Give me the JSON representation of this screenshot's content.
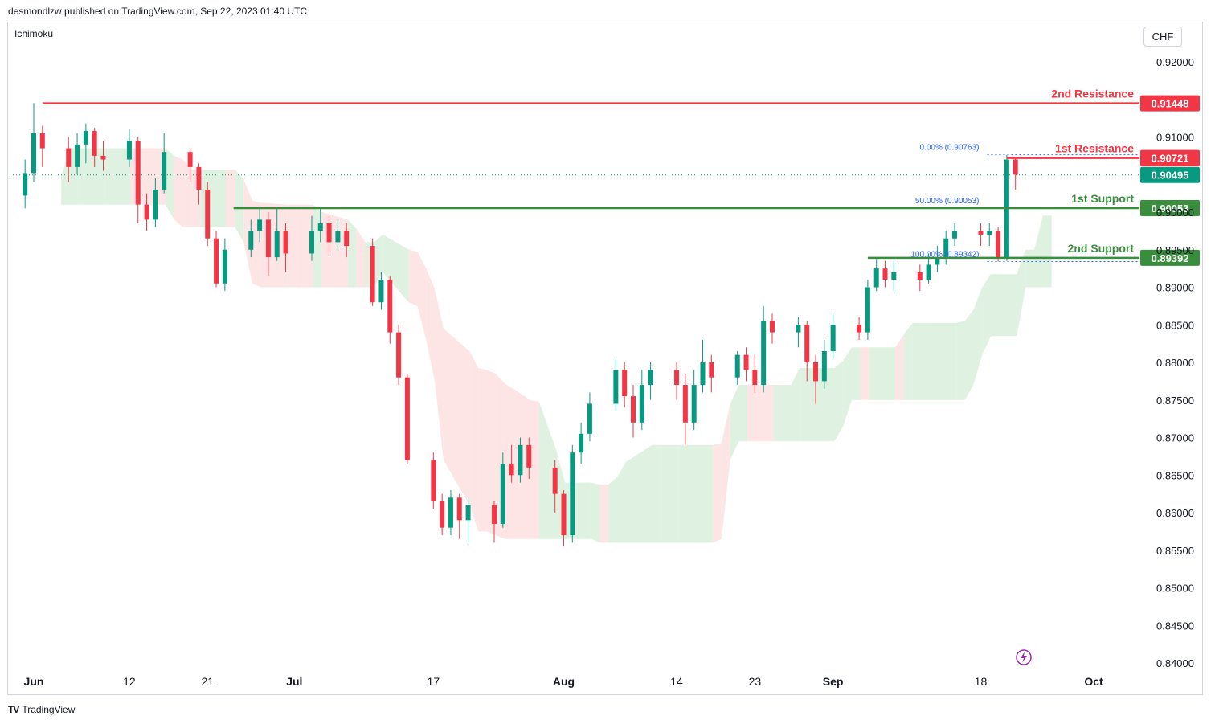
{
  "header": {
    "publisher_text": "desmondlzw published on TradingView.com, Sep 22, 2023 01:40 UTC"
  },
  "indicator": {
    "name": "Ichimoku"
  },
  "currency": {
    "label": "CHF"
  },
  "footer": {
    "brand": "TradingView"
  },
  "chart_data": {
    "type": "candlestick",
    "symbol_currency": "CHF",
    "y_range": [
      0.8395,
      0.9235
    ],
    "y_ticks": [
      "0.92000",
      "0.91000",
      "0.90000",
      "0.89500",
      "0.89000",
      "0.88500",
      "0.88000",
      "0.87500",
      "0.87000",
      "0.86500",
      "0.86000",
      "0.85500",
      "0.85000",
      "0.84500",
      "0.84000"
    ],
    "y_tick_values": [
      0.92,
      0.91,
      0.9,
      0.895,
      0.89,
      0.885,
      0.88,
      0.875,
      0.87,
      0.865,
      0.86,
      0.855,
      0.85,
      0.845,
      0.84
    ],
    "x_ticks": [
      "Jun",
      "12",
      "21",
      "Jul",
      "17",
      "Aug",
      "14",
      "23",
      "Sep",
      "18",
      "Oct"
    ],
    "x_tick_dates": [
      "2023-06-01",
      "2023-06-12",
      "2023-06-21",
      "2023-07-01",
      "2023-07-17",
      "2023-08-01",
      "2023-08-14",
      "2023-08-23",
      "2023-09-01",
      "2023-09-18",
      "2023-10-01"
    ],
    "bold_x_ticks": [
      "Jun",
      "Jul",
      "Aug",
      "Sep",
      "Oct"
    ],
    "colors": {
      "up": "#089981",
      "down": "#f23645",
      "resistance": "#f23645",
      "support": "#388e3c",
      "cloud_bull": "#d9eedb",
      "cloud_bear": "#fde0e0",
      "fib": "#2962ff"
    },
    "levels": [
      {
        "label": "2nd Resistance",
        "price": "0.91448",
        "value": 0.91448,
        "kind": "resistance",
        "start_date": "2023-06-02"
      },
      {
        "label": "1st Resistance",
        "price": "0.90721",
        "value": 0.90721,
        "kind": "resistance",
        "start_date": "2023-09-21"
      },
      {
        "label": "1st Support",
        "price": "0.90053",
        "value": 0.90053,
        "kind": "support",
        "start_date": "2023-06-24"
      },
      {
        "label": "2nd Support",
        "price": "0.89392",
        "value": 0.89392,
        "kind": "support",
        "start_date": "2023-09-05"
      }
    ],
    "current_price": {
      "price": "0.90495",
      "value": 0.90495
    },
    "fib_levels": [
      {
        "label": "0.00% (0.90763)",
        "value": 0.90763
      },
      {
        "label": "50.00% (0.90053)",
        "value": 0.90053
      },
      {
        "label": "100.00% (0.89342)",
        "value": 0.89342
      }
    ],
    "candles": [
      {
        "date": "2023-05-31",
        "o": 0.9022,
        "c": 0.9052,
        "h": 0.907,
        "l": 0.9005
      },
      {
        "date": "2023-06-01",
        "o": 0.9052,
        "c": 0.9105,
        "h": 0.9145,
        "l": 0.904
      },
      {
        "date": "2023-06-02",
        "o": 0.9105,
        "c": 0.9085,
        "h": 0.9115,
        "l": 0.906
      },
      {
        "date": "2023-06-05",
        "o": 0.9085,
        "c": 0.906,
        "h": 0.91,
        "l": 0.904
      },
      {
        "date": "2023-06-06",
        "o": 0.906,
        "c": 0.909,
        "h": 0.9105,
        "l": 0.905
      },
      {
        "date": "2023-06-07",
        "o": 0.909,
        "c": 0.9108,
        "h": 0.9118,
        "l": 0.9065
      },
      {
        "date": "2023-06-08",
        "o": 0.9108,
        "c": 0.9075,
        "h": 0.9112,
        "l": 0.906
      },
      {
        "date": "2023-06-09",
        "o": 0.9075,
        "c": 0.907,
        "h": 0.9095,
        "l": 0.9055
      },
      {
        "date": "2023-06-12",
        "o": 0.907,
        "c": 0.9095,
        "h": 0.911,
        "l": 0.906
      },
      {
        "date": "2023-06-13",
        "o": 0.9095,
        "c": 0.901,
        "h": 0.91,
        "l": 0.8985
      },
      {
        "date": "2023-06-14",
        "o": 0.901,
        "c": 0.899,
        "h": 0.9025,
        "l": 0.8975
      },
      {
        "date": "2023-06-15",
        "o": 0.899,
        "c": 0.903,
        "h": 0.9045,
        "l": 0.898
      },
      {
        "date": "2023-06-16",
        "o": 0.903,
        "c": 0.908,
        "h": 0.9105,
        "l": 0.9025
      },
      {
        "date": "2023-06-19",
        "o": 0.908,
        "c": 0.906,
        "h": 0.9085,
        "l": 0.904
      },
      {
        "date": "2023-06-20",
        "o": 0.906,
        "c": 0.903,
        "h": 0.9065,
        "l": 0.901
      },
      {
        "date": "2023-06-21",
        "o": 0.903,
        "c": 0.8965,
        "h": 0.904,
        "l": 0.8955
      },
      {
        "date": "2023-06-22",
        "o": 0.8965,
        "c": 0.8905,
        "h": 0.8975,
        "l": 0.89
      },
      {
        "date": "2023-06-23",
        "o": 0.8905,
        "c": 0.895,
        "h": 0.8965,
        "l": 0.8895
      },
      {
        "date": "2023-06-26",
        "o": 0.895,
        "c": 0.8975,
        "h": 0.899,
        "l": 0.894
      },
      {
        "date": "2023-06-27",
        "o": 0.8975,
        "c": 0.899,
        "h": 0.9005,
        "l": 0.896
      },
      {
        "date": "2023-06-28",
        "o": 0.899,
        "c": 0.894,
        "h": 0.9,
        "l": 0.8915
      },
      {
        "date": "2023-06-29",
        "o": 0.894,
        "c": 0.8975,
        "h": 0.9005,
        "l": 0.8935
      },
      {
        "date": "2023-06-30",
        "o": 0.8975,
        "c": 0.8945,
        "h": 0.8985,
        "l": 0.892
      },
      {
        "date": "2023-07-03",
        "o": 0.8945,
        "c": 0.8975,
        "h": 0.8995,
        "l": 0.8935
      },
      {
        "date": "2023-07-04",
        "o": 0.8975,
        "c": 0.8985,
        "h": 0.9005,
        "l": 0.896
      },
      {
        "date": "2023-07-05",
        "o": 0.8985,
        "c": 0.896,
        "h": 0.8995,
        "l": 0.8945
      },
      {
        "date": "2023-07-06",
        "o": 0.896,
        "c": 0.8975,
        "h": 0.899,
        "l": 0.895
      },
      {
        "date": "2023-07-07",
        "o": 0.8975,
        "c": 0.8955,
        "h": 0.8985,
        "l": 0.894
      },
      {
        "date": "2023-07-10",
        "o": 0.8955,
        "c": 0.888,
        "h": 0.8965,
        "l": 0.8875
      },
      {
        "date": "2023-07-11",
        "o": 0.888,
        "c": 0.891,
        "h": 0.892,
        "l": 0.887
      },
      {
        "date": "2023-07-12",
        "o": 0.891,
        "c": 0.884,
        "h": 0.8915,
        "l": 0.8825
      },
      {
        "date": "2023-07-13",
        "o": 0.884,
        "c": 0.878,
        "h": 0.885,
        "l": 0.877
      },
      {
        "date": "2023-07-14",
        "o": 0.878,
        "c": 0.867,
        "h": 0.8785,
        "l": 0.8665
      },
      {
        "date": "2023-07-17",
        "o": 0.867,
        "c": 0.8615,
        "h": 0.868,
        "l": 0.8605
      },
      {
        "date": "2023-07-18",
        "o": 0.8615,
        "c": 0.858,
        "h": 0.8625,
        "l": 0.857
      },
      {
        "date": "2023-07-19",
        "o": 0.858,
        "c": 0.862,
        "h": 0.863,
        "l": 0.857
      },
      {
        "date": "2023-07-20",
        "o": 0.862,
        "c": 0.859,
        "h": 0.8625,
        "l": 0.8565
      },
      {
        "date": "2023-07-21",
        "o": 0.859,
        "c": 0.861,
        "h": 0.862,
        "l": 0.856
      },
      {
        "date": "2023-07-24",
        "o": 0.861,
        "c": 0.8585,
        "h": 0.8615,
        "l": 0.856
      },
      {
        "date": "2023-07-25",
        "o": 0.8585,
        "c": 0.8665,
        "h": 0.868,
        "l": 0.858
      },
      {
        "date": "2023-07-26",
        "o": 0.8665,
        "c": 0.865,
        "h": 0.869,
        "l": 0.864
      },
      {
        "date": "2023-07-27",
        "o": 0.865,
        "c": 0.869,
        "h": 0.87,
        "l": 0.864
      },
      {
        "date": "2023-07-28",
        "o": 0.869,
        "c": 0.866,
        "h": 0.87,
        "l": 0.8645
      },
      {
        "date": "2023-07-31",
        "o": 0.866,
        "c": 0.8625,
        "h": 0.867,
        "l": 0.86
      },
      {
        "date": "2023-08-01",
        "o": 0.8625,
        "c": 0.857,
        "h": 0.863,
        "l": 0.8555
      },
      {
        "date": "2023-08-02",
        "o": 0.857,
        "c": 0.868,
        "h": 0.869,
        "l": 0.856
      },
      {
        "date": "2023-08-03",
        "o": 0.868,
        "c": 0.8705,
        "h": 0.872,
        "l": 0.8665
      },
      {
        "date": "2023-08-04",
        "o": 0.8705,
        "c": 0.8745,
        "h": 0.876,
        "l": 0.8695
      },
      {
        "date": "2023-08-07",
        "o": 0.8745,
        "c": 0.879,
        "h": 0.8805,
        "l": 0.8735
      },
      {
        "date": "2023-08-08",
        "o": 0.879,
        "c": 0.8755,
        "h": 0.88,
        "l": 0.874
      },
      {
        "date": "2023-08-09",
        "o": 0.8755,
        "c": 0.872,
        "h": 0.877,
        "l": 0.87
      },
      {
        "date": "2023-08-10",
        "o": 0.872,
        "c": 0.877,
        "h": 0.879,
        "l": 0.871
      },
      {
        "date": "2023-08-11",
        "o": 0.877,
        "c": 0.879,
        "h": 0.88,
        "l": 0.875
      },
      {
        "date": "2023-08-14",
        "o": 0.879,
        "c": 0.877,
        "h": 0.88,
        "l": 0.875
      },
      {
        "date": "2023-08-15",
        "o": 0.877,
        "c": 0.872,
        "h": 0.8785,
        "l": 0.869
      },
      {
        "date": "2023-08-16",
        "o": 0.872,
        "c": 0.877,
        "h": 0.879,
        "l": 0.871
      },
      {
        "date": "2023-08-17",
        "o": 0.877,
        "c": 0.88,
        "h": 0.883,
        "l": 0.876
      },
      {
        "date": "2023-08-18",
        "o": 0.88,
        "c": 0.878,
        "h": 0.881,
        "l": 0.876
      },
      {
        "date": "2023-08-21",
        "o": 0.878,
        "c": 0.881,
        "h": 0.8815,
        "l": 0.877
      },
      {
        "date": "2023-08-22",
        "o": 0.881,
        "c": 0.879,
        "h": 0.882,
        "l": 0.8775
      },
      {
        "date": "2023-08-23",
        "o": 0.879,
        "c": 0.877,
        "h": 0.881,
        "l": 0.876
      },
      {
        "date": "2023-08-24",
        "o": 0.877,
        "c": 0.8855,
        "h": 0.8875,
        "l": 0.876
      },
      {
        "date": "2023-08-25",
        "o": 0.8855,
        "c": 0.884,
        "h": 0.8865,
        "l": 0.8825
      },
      {
        "date": "2023-08-28",
        "o": 0.884,
        "c": 0.885,
        "h": 0.886,
        "l": 0.882
      },
      {
        "date": "2023-08-29",
        "o": 0.885,
        "c": 0.88,
        "h": 0.8855,
        "l": 0.8775
      },
      {
        "date": "2023-08-30",
        "o": 0.88,
        "c": 0.8775,
        "h": 0.881,
        "l": 0.8745
      },
      {
        "date": "2023-08-31",
        "o": 0.8775,
        "c": 0.8815,
        "h": 0.883,
        "l": 0.8765
      },
      {
        "date": "2023-09-01",
        "o": 0.8815,
        "c": 0.885,
        "h": 0.8865,
        "l": 0.8805
      },
      {
        "date": "2023-09-04",
        "o": 0.885,
        "c": 0.884,
        "h": 0.886,
        "l": 0.883
      },
      {
        "date": "2023-09-05",
        "o": 0.884,
        "c": 0.89,
        "h": 0.891,
        "l": 0.883
      },
      {
        "date": "2023-09-06",
        "o": 0.89,
        "c": 0.8925,
        "h": 0.894,
        "l": 0.8895
      },
      {
        "date": "2023-09-07",
        "o": 0.8925,
        "c": 0.891,
        "h": 0.8935,
        "l": 0.89
      },
      {
        "date": "2023-09-08",
        "o": 0.891,
        "c": 0.892,
        "h": 0.8935,
        "l": 0.8895
      },
      {
        "date": "2023-09-11",
        "o": 0.892,
        "c": 0.891,
        "h": 0.893,
        "l": 0.8895
      },
      {
        "date": "2023-09-12",
        "o": 0.891,
        "c": 0.893,
        "h": 0.8945,
        "l": 0.8905
      },
      {
        "date": "2023-09-13",
        "o": 0.893,
        "c": 0.894,
        "h": 0.8955,
        "l": 0.892
      },
      {
        "date": "2023-09-14",
        "o": 0.894,
        "c": 0.8965,
        "h": 0.8975,
        "l": 0.893
      },
      {
        "date": "2023-09-15",
        "o": 0.8965,
        "c": 0.8975,
        "h": 0.8985,
        "l": 0.8955
      },
      {
        "date": "2023-09-18",
        "o": 0.8975,
        "c": 0.897,
        "h": 0.8985,
        "l": 0.8955
      },
      {
        "date": "2023-09-19",
        "o": 0.897,
        "c": 0.8975,
        "h": 0.8985,
        "l": 0.8955
      },
      {
        "date": "2023-09-20",
        "o": 0.8975,
        "c": 0.894,
        "h": 0.898,
        "l": 0.8934
      },
      {
        "date": "2023-09-21",
        "o": 0.894,
        "c": 0.907,
        "h": 0.9076,
        "l": 0.8935
      },
      {
        "date": "2023-09-22",
        "o": 0.907,
        "c": 0.905,
        "h": 0.9072,
        "l": 0.903
      }
    ]
  }
}
